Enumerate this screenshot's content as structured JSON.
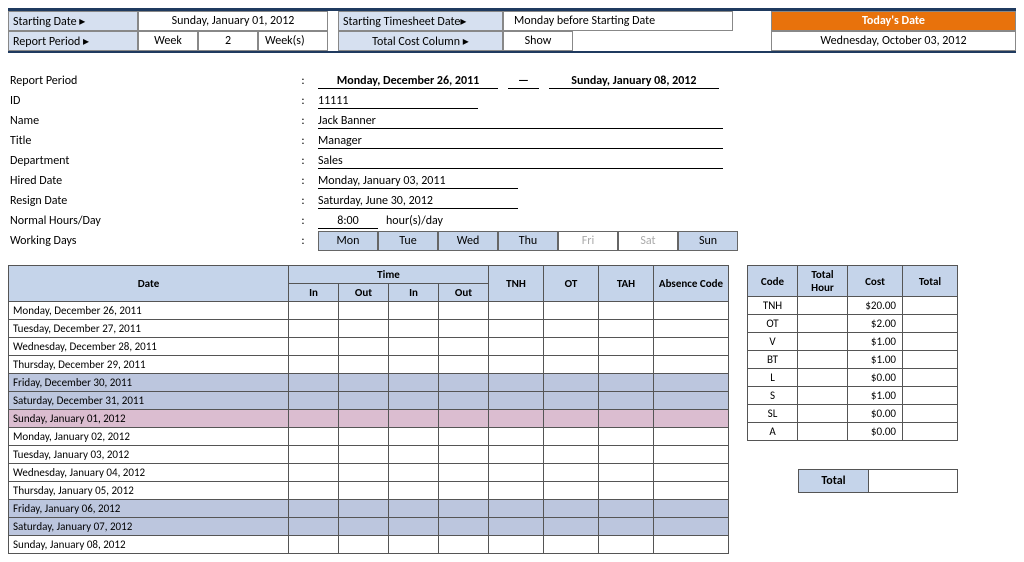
{
  "colors": {
    "header_bg": "#c5d4ea",
    "weekend_row": "#bcc6de",
    "sunday_row": "#dbbdd0",
    "orange": "#e8720c",
    "border_dark": "#1f3a5f"
  },
  "top": {
    "starting_date_label": "Starting Date ▸",
    "starting_date_value": "Sunday, January 01, 2012",
    "starting_timesheet_label": "Starting Timesheet Date▸",
    "starting_timesheet_value": "Monday before Starting Date",
    "todays_date_label": "Today's Date",
    "todays_date_value": "Wednesday, October 03, 2012",
    "report_period_label": "Report Period ▸",
    "week_label": "Week",
    "week_value": "2",
    "weeks_label": "Week(s)",
    "total_cost_label": "Total Cost Column ▸",
    "total_cost_value": "Show"
  },
  "info": {
    "report_period_label": "Report Period",
    "report_period_from": "Monday, December 26, 2011",
    "report_period_to": "Sunday, January 08, 2012",
    "id_label": "ID",
    "id_value": "11111",
    "name_label": "Name",
    "name_value": "Jack Banner",
    "title_label": "Title",
    "title_value": "Manager",
    "department_label": "Department",
    "department_value": "Sales",
    "hired_label": "Hired Date",
    "hired_value": "Monday, January 03, 2011",
    "resign_label": "Resign Date",
    "resign_value": "Saturday, June 30, 2012",
    "hours_label": "Normal Hours/Day",
    "hours_value": "8:00",
    "hours_suffix": "hour(s)/day",
    "working_label": "Working Days",
    "days": [
      {
        "label": "Mon",
        "on": true
      },
      {
        "label": "Tue",
        "on": true
      },
      {
        "label": "Wed",
        "on": true
      },
      {
        "label": "Thu",
        "on": true
      },
      {
        "label": "Fri",
        "on": false
      },
      {
        "label": "Sat",
        "on": false
      },
      {
        "label": "Sun",
        "on": true
      }
    ]
  },
  "timesheet": {
    "headers": {
      "date": "Date",
      "time": "Time",
      "in": "In",
      "out": "Out",
      "tnh": "TNH",
      "ot": "OT",
      "tah": "TAH",
      "absence": "Absence Code"
    },
    "rows": [
      {
        "date": "Monday, December 26, 2011",
        "style": ""
      },
      {
        "date": "Tuesday, December 27, 2011",
        "style": ""
      },
      {
        "date": "Wednesday, December 28, 2011",
        "style": ""
      },
      {
        "date": "Thursday, December 29, 2011",
        "style": ""
      },
      {
        "date": "Friday, December 30, 2011",
        "style": "weekend"
      },
      {
        "date": "Saturday, December 31, 2011",
        "style": "weekend"
      },
      {
        "date": "Sunday, January 01, 2012",
        "style": "sunday"
      },
      {
        "date": "Monday, January 02, 2012",
        "style": ""
      },
      {
        "date": "Tuesday, January 03, 2012",
        "style": ""
      },
      {
        "date": "Wednesday, January 04, 2012",
        "style": ""
      },
      {
        "date": "Thursday, January 05, 2012",
        "style": ""
      },
      {
        "date": "Friday, January 06, 2012",
        "style": "weekend"
      },
      {
        "date": "Saturday, January 07, 2012",
        "style": "weekend"
      },
      {
        "date": "Sunday, January 08, 2012",
        "style": ""
      }
    ],
    "col_widths": {
      "date": 280,
      "in1": 50,
      "out1": 50,
      "in2": 50,
      "out2": 50,
      "tnh": 55,
      "ot": 55,
      "tah": 55,
      "absence": 75
    }
  },
  "codes": {
    "headers": {
      "code": "Code",
      "total_hour": "Total Hour",
      "cost": "Cost",
      "total": "Total"
    },
    "rows": [
      {
        "code": "TNH",
        "hour": "",
        "cost": "$20.00",
        "total": ""
      },
      {
        "code": "OT",
        "hour": "",
        "cost": "$2.00",
        "total": ""
      },
      {
        "code": "V",
        "hour": "",
        "cost": "$1.00",
        "total": ""
      },
      {
        "code": "BT",
        "hour": "",
        "cost": "$1.00",
        "total": ""
      },
      {
        "code": "L",
        "hour": "",
        "cost": "$0.00",
        "total": ""
      },
      {
        "code": "S",
        "hour": "",
        "cost": "$1.00",
        "total": ""
      },
      {
        "code": "SL",
        "hour": "",
        "cost": "$0.00",
        "total": ""
      },
      {
        "code": "A",
        "hour": "",
        "cost": "$0.00",
        "total": ""
      }
    ],
    "total_label": "Total",
    "col_widths": {
      "code": 50,
      "hour": 50,
      "cost": 55,
      "total": 55
    }
  }
}
